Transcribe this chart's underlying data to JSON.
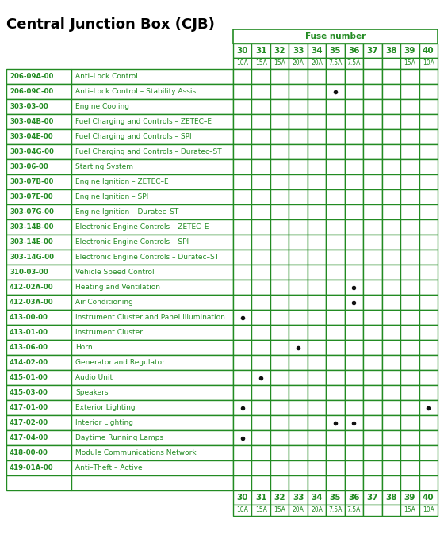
{
  "title": "Central Junction Box (CJB)",
  "title_fontsize": 13,
  "bg_color": "#ffffff",
  "grid_color": "#228B22",
  "text_color": "#228B22",
  "dot_color": "#111111",
  "fuse_header": "Fuse number",
  "fuse_numbers": [
    "30",
    "31",
    "32",
    "33",
    "34",
    "35",
    "36",
    "37",
    "38",
    "39",
    "40"
  ],
  "fuse_amps": [
    "10A",
    "15A",
    "15A",
    "20A",
    "20A",
    "7.5A",
    "7.5A",
    "",
    "",
    "15A",
    "10A"
  ],
  "rows": [
    {
      "code": "206-09A-00",
      "desc": "Anti–Lock Control",
      "dots": []
    },
    {
      "code": "206-09C-00",
      "desc": "Anti–Lock Control – Stability Assist",
      "dots": [
        5
      ]
    },
    {
      "code": "303-03-00",
      "desc": "Engine Cooling",
      "dots": []
    },
    {
      "code": "303-04B-00",
      "desc": "Fuel Charging and Controls – ZETEC–E",
      "dots": []
    },
    {
      "code": "303-04E-00",
      "desc": "Fuel Charging and Controls – SPI",
      "dots": []
    },
    {
      "code": "303-04G-00",
      "desc": "Fuel Charging and Controls – Duratec–ST",
      "dots": []
    },
    {
      "code": "303-06-00",
      "desc": "Starting System",
      "dots": []
    },
    {
      "code": "303-07B-00",
      "desc": "Engine Ignition – ZETEC–E",
      "dots": []
    },
    {
      "code": "303-07E-00",
      "desc": "Engine Ignition – SPI",
      "dots": []
    },
    {
      "code": "303-07G-00",
      "desc": "Engine Ignition – Duratec–ST",
      "dots": []
    },
    {
      "code": "303-14B-00",
      "desc": "Electronic Engine Controls – ZETEC–E",
      "dots": []
    },
    {
      "code": "303-14E-00",
      "desc": "Electronic Engine Controls – SPI",
      "dots": []
    },
    {
      "code": "303-14G-00",
      "desc": "Electronic Engine Controls – Duratec–ST",
      "dots": []
    },
    {
      "code": "310-03-00",
      "desc": "Vehicle Speed Control",
      "dots": []
    },
    {
      "code": "412-02A-00",
      "desc": "Heating and Ventilation",
      "dots": [
        6
      ]
    },
    {
      "code": "412-03A-00",
      "desc": "Air Conditioning",
      "dots": [
        6
      ]
    },
    {
      "code": "413-00-00",
      "desc": "Instrument Cluster and Panel Illumination",
      "dots": [
        0
      ]
    },
    {
      "code": "413-01-00",
      "desc": "Instrument Cluster",
      "dots": []
    },
    {
      "code": "413-06-00",
      "desc": "Horn",
      "dots": [
        3
      ]
    },
    {
      "code": "414-02-00",
      "desc": "Generator and Regulator",
      "dots": []
    },
    {
      "code": "415-01-00",
      "desc": "Audio Unit",
      "dots": [
        1
      ]
    },
    {
      "code": "415-03-00",
      "desc": "Speakers",
      "dots": []
    },
    {
      "code": "417-01-00",
      "desc": "Exterior Lighting",
      "dots": [
        0,
        10
      ]
    },
    {
      "code": "417-02-00",
      "desc": "Interior Lighting",
      "dots": [
        5,
        6
      ]
    },
    {
      "code": "417-04-00",
      "desc": "Daytime Running Lamps",
      "dots": [
        0
      ]
    },
    {
      "code": "418-00-00",
      "desc": "Module Communications Network",
      "dots": []
    },
    {
      "code": "419-01A-00",
      "desc": "Anti–Theft – Active",
      "dots": []
    },
    {
      "code": "",
      "desc": "",
      "dots": []
    }
  ]
}
